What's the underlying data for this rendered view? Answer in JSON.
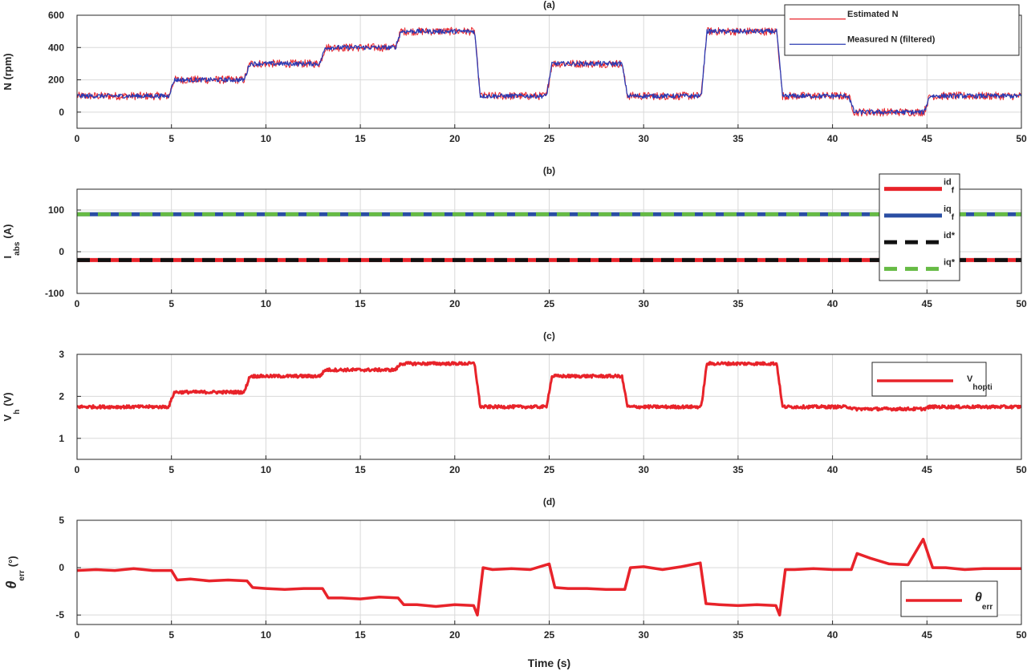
{
  "figure": {
    "xlabel": "Time (s)"
  },
  "chart_data": [
    {
      "type": "line",
      "title": "(a)",
      "ylabel": "N (rpm)",
      "xlim": [
        0,
        50
      ],
      "ylim": [
        -100,
        600
      ],
      "xticks": [
        0,
        5,
        10,
        15,
        20,
        25,
        30,
        35,
        40,
        45,
        50
      ],
      "yticks": [
        0,
        200,
        400,
        600
      ],
      "grid": true,
      "legend_position": "top-right",
      "series": [
        {
          "name": "Estimated N",
          "color": "#e8232a",
          "noise": 25,
          "steps": [
            [
              0,
              100
            ],
            [
              5,
              200
            ],
            [
              9,
              300
            ],
            [
              13,
              400
            ],
            [
              17,
              500
            ],
            [
              21.2,
              100
            ],
            [
              25,
              300
            ],
            [
              29,
              100
            ],
            [
              33.2,
              500
            ],
            [
              37.2,
              100
            ],
            [
              41,
              0
            ],
            [
              45,
              100
            ],
            [
              50,
              100
            ]
          ]
        },
        {
          "name": "Measured N (filtered)",
          "color": "#2b3bb3",
          "noise": 14,
          "steps": [
            [
              0,
              100
            ],
            [
              5,
              200
            ],
            [
              9,
              300
            ],
            [
              13,
              400
            ],
            [
              17,
              500
            ],
            [
              21.2,
              100
            ],
            [
              25,
              300
            ],
            [
              29,
              100
            ],
            [
              33.2,
              500
            ],
            [
              37.2,
              100
            ],
            [
              41,
              0
            ],
            [
              45,
              100
            ],
            [
              50,
              100
            ]
          ]
        }
      ]
    },
    {
      "type": "line",
      "title": "(b)",
      "ylabel": "I",
      "ylabel_sub": "abs",
      "ylabel_unit": "(A)",
      "xlim": [
        0,
        50
      ],
      "ylim": [
        -100,
        150
      ],
      "xticks": [
        0,
        5,
        10,
        15,
        20,
        25,
        30,
        35,
        40,
        45,
        50
      ],
      "yticks": [
        -100,
        0,
        100
      ],
      "grid": true,
      "legend_position": "right",
      "series": [
        {
          "name": "id",
          "sub": "f",
          "color": "#e8232a",
          "style": "solid",
          "x": [
            0,
            50
          ],
          "y": [
            -20,
            -20
          ]
        },
        {
          "name": "iq",
          "sub": "f",
          "color": "#2a4ea3",
          "style": "solid",
          "x": [
            0,
            50
          ],
          "y": [
            90,
            90
          ]
        },
        {
          "name": "id*",
          "color": "#111111",
          "style": "dashed",
          "x": [
            0,
            50
          ],
          "y": [
            -20,
            -20
          ]
        },
        {
          "name": "iq*",
          "color": "#66bb44",
          "style": "dashed",
          "x": [
            0,
            50
          ],
          "y": [
            90,
            90
          ]
        }
      ]
    },
    {
      "type": "line",
      "title": "(c)",
      "ylabel": "V",
      "ylabel_sub": "h",
      "ylabel_unit": "(V)",
      "xlim": [
        0,
        50
      ],
      "ylim": [
        0.5,
        3
      ],
      "xticks": [
        0,
        5,
        10,
        15,
        20,
        25,
        30,
        35,
        40,
        45,
        50
      ],
      "yticks": [
        1,
        2,
        3
      ],
      "grid": true,
      "legend_position": "top-right",
      "series": [
        {
          "name": "V",
          "sub": "hopti",
          "color": "#e8232a",
          "noise": 0.035,
          "steps": [
            [
              0,
              1.75
            ],
            [
              5,
              2.1
            ],
            [
              9,
              2.48
            ],
            [
              13,
              2.63
            ],
            [
              17,
              2.78
            ],
            [
              21.2,
              1.75
            ],
            [
              25,
              2.48
            ],
            [
              29,
              1.75
            ],
            [
              33.2,
              2.78
            ],
            [
              37.2,
              1.75
            ],
            [
              41,
              1.7
            ],
            [
              45,
              1.75
            ],
            [
              50,
              1.75
            ]
          ]
        }
      ]
    },
    {
      "type": "line",
      "title": "(d)",
      "ylabel": "θ",
      "ylabel_sub": "err",
      "ylabel_unit": "(°)",
      "xlim": [
        0,
        50
      ],
      "ylim": [
        -6,
        5
      ],
      "xticks": [
        0,
        5,
        10,
        15,
        20,
        25,
        30,
        35,
        40,
        45,
        50
      ],
      "yticks": [
        -5,
        0,
        5
      ],
      "grid": true,
      "legend_position": "bottom-right",
      "series": [
        {
          "name": "θ",
          "sub": "err",
          "color": "#e8232a",
          "x": [
            0,
            1,
            2,
            3,
            4,
            5,
            5.3,
            6,
            7,
            8,
            9,
            9.3,
            10,
            11,
            12,
            13,
            13.3,
            14,
            15,
            16,
            17,
            17.3,
            18,
            19,
            20,
            21,
            21.2,
            21.5,
            22,
            23,
            24,
            25,
            25.3,
            26,
            27,
            28,
            29,
            29.3,
            30,
            31,
            32,
            33,
            33.3,
            34,
            35,
            36,
            37,
            37.2,
            37.5,
            38,
            39,
            40,
            41,
            41.3,
            42,
            43,
            44,
            44.8,
            45.3,
            46,
            47,
            48,
            49,
            50
          ],
          "y": [
            -0.3,
            -0.2,
            -0.3,
            -0.1,
            -0.3,
            -0.3,
            -1.3,
            -1.2,
            -1.4,
            -1.3,
            -1.4,
            -2.1,
            -2.2,
            -2.3,
            -2.2,
            -2.2,
            -3.2,
            -3.2,
            -3.3,
            -3.1,
            -3.2,
            -3.9,
            -3.9,
            -4.1,
            -3.9,
            -4.0,
            -5.0,
            0,
            -0.2,
            -0.1,
            -0.2,
            0.4,
            -2.1,
            -2.2,
            -2.2,
            -2.3,
            -2.3,
            0,
            0.1,
            -0.2,
            0.1,
            0.5,
            -3.8,
            -3.9,
            -4.0,
            -3.9,
            -4.0,
            -5.0,
            -0.2,
            -0.2,
            -0.1,
            -0.2,
            -0.2,
            1.5,
            1.0,
            0.4,
            0.3,
            3.0,
            0.0,
            0.0,
            -0.2,
            -0.1,
            -0.1,
            -0.1
          ]
        }
      ]
    }
  ]
}
